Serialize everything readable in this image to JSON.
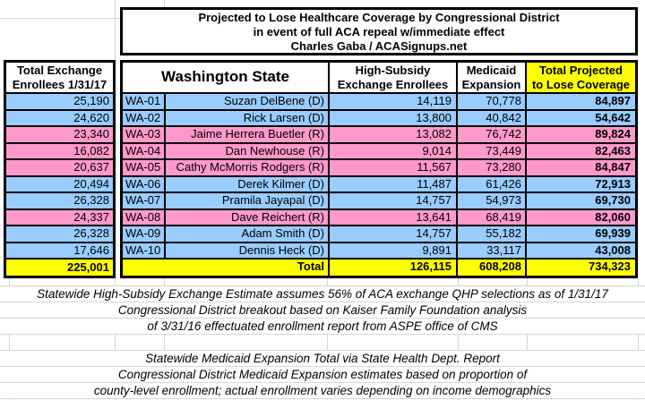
{
  "colors": {
    "democrat_row": "#99CCFF",
    "republican_row": "#FF99CC",
    "total_row": "#FFFF00",
    "header_highlight": "#FFFF00"
  },
  "left_table": {
    "header_line1": "Total Exchange",
    "header_line2": "Enrollees 1/31/17",
    "total": "225,001"
  },
  "main_table": {
    "title_line1": "Projected to Lose Healthcare Coverage by Congressional District",
    "title_line2": "in event of full ACA repeal w/immediate effect",
    "title_line3": "Charles Gaba / ACASignups.net",
    "state_header": "Washington State",
    "col_high_subsidy_line1": "High-Subsidy",
    "col_high_subsidy_line2": "Exchange Enrollees",
    "col_medicaid_line1": "Medicaid",
    "col_medicaid_line2": "Expansion",
    "col_total_line1": "Total Projected",
    "col_total_line2": "to Lose Coverage",
    "total_label": "Total",
    "total_high_subsidy": "126,115",
    "total_medicaid": "608,208",
    "total_coverage": "734,323"
  },
  "rows": [
    {
      "exchange_enrollees": "25,190",
      "district": "WA-01",
      "rep": "Suzan DelBene (D)",
      "party": "D",
      "high_subsidy": "14,119",
      "medicaid": "70,778",
      "total": "84,897"
    },
    {
      "exchange_enrollees": "24,620",
      "district": "WA-02",
      "rep": "Rick Larsen (D)",
      "party": "D",
      "high_subsidy": "13,800",
      "medicaid": "40,842",
      "total": "54,642"
    },
    {
      "exchange_enrollees": "23,340",
      "district": "WA-03",
      "rep": "Jaime Herrera Buetler (R)",
      "party": "R",
      "high_subsidy": "13,082",
      "medicaid": "76,742",
      "total": "89,824"
    },
    {
      "exchange_enrollees": "16,082",
      "district": "WA-04",
      "rep": "Dan Newhouse (R)",
      "party": "R",
      "high_subsidy": "9,014",
      "medicaid": "73,449",
      "total": "82,463"
    },
    {
      "exchange_enrollees": "20,637",
      "district": "WA-05",
      "rep": "Cathy McMorris Rodgers (R)",
      "party": "R",
      "high_subsidy": "11,567",
      "medicaid": "73,280",
      "total": "84,847"
    },
    {
      "exchange_enrollees": "20,494",
      "district": "WA-06",
      "rep": "Derek Kilmer (D)",
      "party": "D",
      "high_subsidy": "11,487",
      "medicaid": "61,426",
      "total": "72,913"
    },
    {
      "exchange_enrollees": "26,328",
      "district": "WA-07",
      "rep": "Pramila Jayapal (D)",
      "party": "D",
      "high_subsidy": "14,757",
      "medicaid": "54,973",
      "total": "69,730"
    },
    {
      "exchange_enrollees": "24,337",
      "district": "WA-08",
      "rep": "Dave Reichert (R)",
      "party": "R",
      "high_subsidy": "13,641",
      "medicaid": "68,419",
      "total": "82,060"
    },
    {
      "exchange_enrollees": "26,328",
      "district": "WA-09",
      "rep": "Adam Smith (D)",
      "party": "D",
      "high_subsidy": "14,757",
      "medicaid": "55,182",
      "total": "69,939"
    },
    {
      "exchange_enrollees": "17,646",
      "district": "WA-10",
      "rep": "Dennis Heck (D)",
      "party": "D",
      "high_subsidy": "9,891",
      "medicaid": "33,117",
      "total": "43,008"
    }
  ],
  "notes": {
    "block1": [
      "Statewide High-Subsidy Exchange Estimate assumes 56% of ACA exchange QHP selections as of 1/31/17",
      "Congressional District breakout based on Kaiser Family Foundation analysis",
      "of 3/31/16 effectuated enrollment report from ASPE office of CMS"
    ],
    "block2": [
      "Statewide Medicaid Expansion Total via State Health Dept. Report",
      "Congressional District Medicaid Expansion estimates based on proportion of",
      "county-level enrollment; actual enrollment varies depending on income demographics"
    ]
  }
}
